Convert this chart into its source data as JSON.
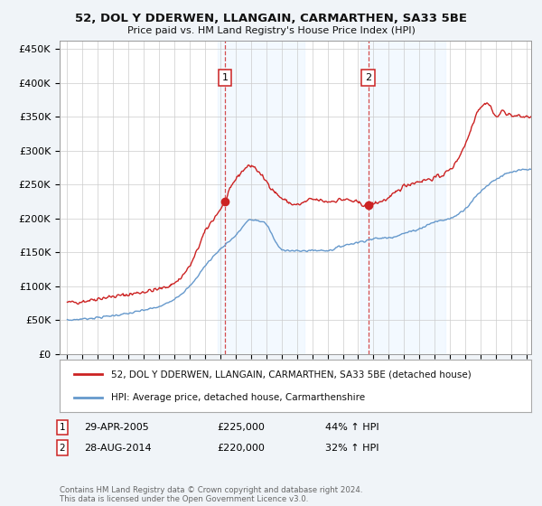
{
  "title": "52, DOL Y DDERWEN, LLANGAIN, CARMARTHEN, SA33 5BE",
  "subtitle": "Price paid vs. HM Land Registry's House Price Index (HPI)",
  "footer": "Contains HM Land Registry data © Crown copyright and database right 2024.\nThis data is licensed under the Open Government Licence v3.0.",
  "legend_label_red": "52, DOL Y DDERWEN, LLANGAIN, CARMARTHEN, SA33 5BE (detached house)",
  "legend_label_blue": "HPI: Average price, detached house, Carmarthenshire",
  "sale1_label": "1",
  "sale1_date": "29-APR-2005",
  "sale1_price": "£225,000",
  "sale1_hpi": "44% ↑ HPI",
  "sale2_label": "2",
  "sale2_date": "28-AUG-2014",
  "sale2_price": "£220,000",
  "sale2_hpi": "32% ↑ HPI",
  "ylim": [
    0,
    462500
  ],
  "xlim_start": 1994.5,
  "xlim_end": 2025.3,
  "background_color": "#f0f4f8",
  "plot_bg_color": "#ffffff",
  "vline1_x": 2005.3,
  "vline2_x": 2014.67,
  "red_color": "#cc2222",
  "blue_color": "#6699cc",
  "vspan_color": "#ddeeff",
  "yticks": [
    0,
    50000,
    100000,
    150000,
    200000,
    250000,
    300000,
    350000,
    400000,
    450000
  ],
  "red_years": [
    1995,
    1996,
    1997,
    1998,
    1999,
    2000,
    2001,
    2002,
    2003,
    2004,
    2005.3,
    2006,
    2007,
    2007.8,
    2009,
    2010,
    2011,
    2012,
    2013,
    2014.67,
    2015,
    2016,
    2017,
    2018,
    2019,
    2020,
    2021,
    2022,
    2022.5,
    2023,
    2023.5,
    2024,
    2025
  ],
  "red_values": [
    76000,
    78000,
    82000,
    85000,
    88000,
    92000,
    96000,
    105000,
    130000,
    180000,
    225000,
    258000,
    278000,
    260000,
    230000,
    220000,
    228000,
    225000,
    228000,
    220000,
    222000,
    230000,
    248000,
    255000,
    260000,
    272000,
    310000,
    365000,
    370000,
    350000,
    358000,
    352000,
    350000
  ],
  "blue_years": [
    1995,
    1996,
    1997,
    1998,
    1999,
    2000,
    2001,
    2002,
    2003,
    2004,
    2005,
    2006,
    2007,
    2007.8,
    2009,
    2010,
    2011,
    2012,
    2013,
    2014,
    2015,
    2016,
    2017,
    2018,
    2019,
    2020,
    2021,
    2022,
    2023,
    2024,
    2025
  ],
  "blue_values": [
    50000,
    52000,
    54000,
    57000,
    60000,
    65000,
    70000,
    82000,
    100000,
    130000,
    155000,
    175000,
    198000,
    195000,
    155000,
    152000,
    153000,
    153000,
    160000,
    165000,
    170000,
    172000,
    178000,
    185000,
    195000,
    200000,
    215000,
    240000,
    258000,
    268000,
    272000
  ]
}
